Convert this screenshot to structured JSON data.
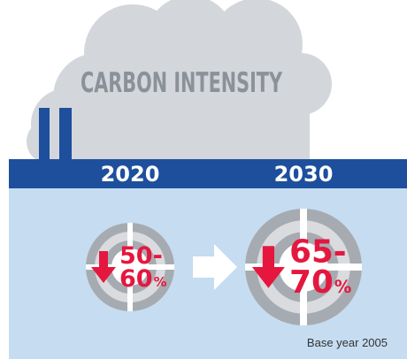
{
  "title": "CARBON INTENSITY",
  "targets": [
    {
      "year": "2020",
      "top": "50-",
      "bottom": "60",
      "unit": "%"
    },
    {
      "year": "2030",
      "top": "65-",
      "bottom": "70",
      "unit": "%"
    }
  ],
  "note": "Base year 2005"
}
